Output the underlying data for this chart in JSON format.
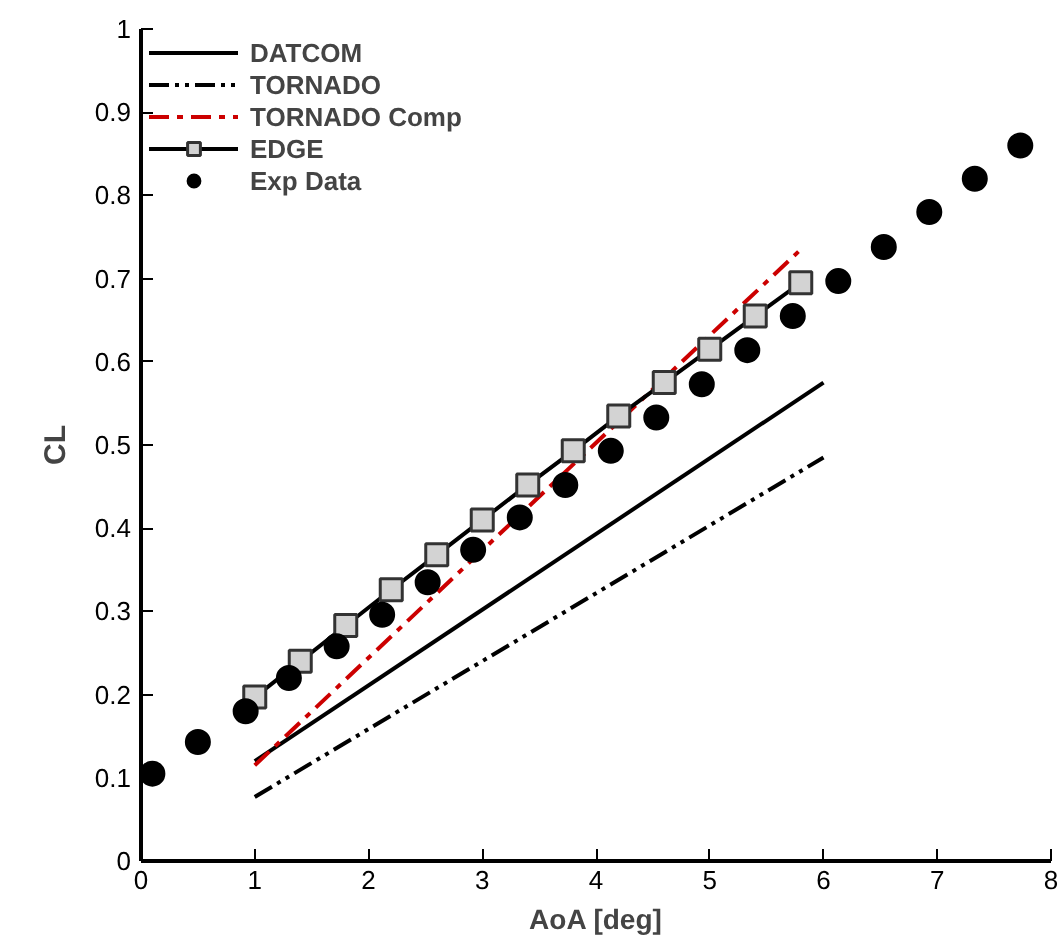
{
  "chart_data": {
    "type": "line",
    "xlabel": "AoA [deg]",
    "ylabel": "CL",
    "xlim": [
      0,
      8
    ],
    "ylim": [
      0,
      1
    ],
    "xticks": [
      0,
      1,
      2,
      3,
      4,
      5,
      6,
      7,
      8
    ],
    "yticks": [
      0,
      0.1,
      0.2,
      0.3,
      0.4,
      0.5,
      0.6,
      0.7,
      0.8,
      0.9,
      1
    ],
    "grid": false,
    "legend": "top left",
    "series": [
      {
        "name": "DATCOM",
        "color": "#000000",
        "line_style": "solid",
        "marker": "none",
        "x": [
          1,
          6
        ],
        "values": [
          0.12,
          0.575
        ]
      },
      {
        "name": "TORNADO",
        "color": "#000000",
        "line_style": "dashdotdot",
        "marker": "none",
        "x": [
          1,
          6
        ],
        "values": [
          0.077,
          0.485
        ]
      },
      {
        "name": "TORNADO Comp",
        "color": "#cc0000",
        "line_style": "dashdot",
        "marker": "none",
        "x": [
          1,
          5.8
        ],
        "values": [
          0.115,
          0.735
        ]
      },
      {
        "name": "EDGE",
        "color": "#000000",
        "line_style": "solid",
        "marker": "square",
        "x": [
          1.0,
          1.4,
          1.8,
          2.2,
          2.6,
          3.0,
          3.4,
          3.8,
          4.2,
          4.6,
          5.0,
          5.4,
          5.8
        ],
        "values": [
          0.197,
          0.24,
          0.283,
          0.326,
          0.368,
          0.41,
          0.452,
          0.493,
          0.535,
          0.575,
          0.615,
          0.655,
          0.695
        ]
      },
      {
        "name": "Exp Data",
        "type": "scatter",
        "color": "#000000",
        "marker": "circle",
        "x": [
          0.1,
          0.5,
          0.92,
          1.3,
          1.72,
          2.12,
          2.52,
          2.92,
          3.33,
          3.73,
          4.13,
          4.53,
          4.93,
          5.33,
          5.73,
          6.13,
          6.53,
          6.93,
          7.33,
          7.73
        ],
        "values": [
          0.105,
          0.143,
          0.18,
          0.22,
          0.258,
          0.296,
          0.335,
          0.374,
          0.413,
          0.452,
          0.493,
          0.533,
          0.573,
          0.614,
          0.655,
          0.697,
          0.738,
          0.78,
          0.82,
          0.86
        ]
      }
    ]
  }
}
